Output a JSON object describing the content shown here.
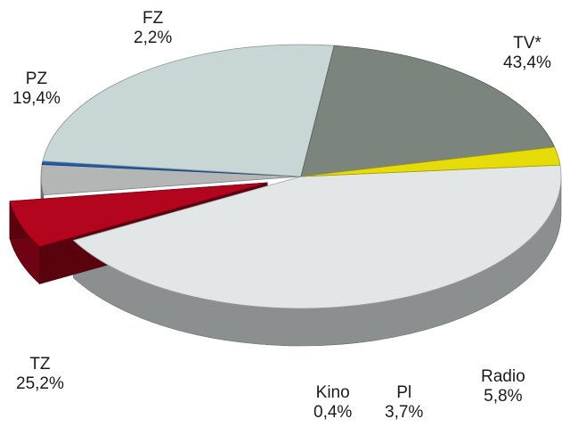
{
  "chart_data": {
    "type": "pie",
    "title": "",
    "legend": "none",
    "grid": false,
    "slices": [
      {
        "label": "TV*",
        "value": 43.4,
        "value_label": "43,4%",
        "color": "#e2e6e6",
        "exploded": false
      },
      {
        "label": "Radio",
        "value": 5.8,
        "value_label": "5,8%",
        "color": "#b3051e",
        "exploded": true
      },
      {
        "label": "Pl",
        "value": 3.7,
        "value_label": "3,7%",
        "color": "#b4b6b6",
        "exploded": false
      },
      {
        "label": "Kino",
        "value": 0.4,
        "value_label": "0,4%",
        "color": "#1e5caa",
        "exploded": false
      },
      {
        "label": "TZ",
        "value": 25.2,
        "value_label": "25,2%",
        "color": "#c8d6d6",
        "exploded": false
      },
      {
        "label": "PZ",
        "value": 19.4,
        "value_label": "19,4%",
        "color": "#7b857d",
        "exploded": false
      },
      {
        "label": "FZ",
        "value": 2.2,
        "value_label": "2,2%",
        "color": "#e6dc0a",
        "exploded": false
      }
    ]
  }
}
